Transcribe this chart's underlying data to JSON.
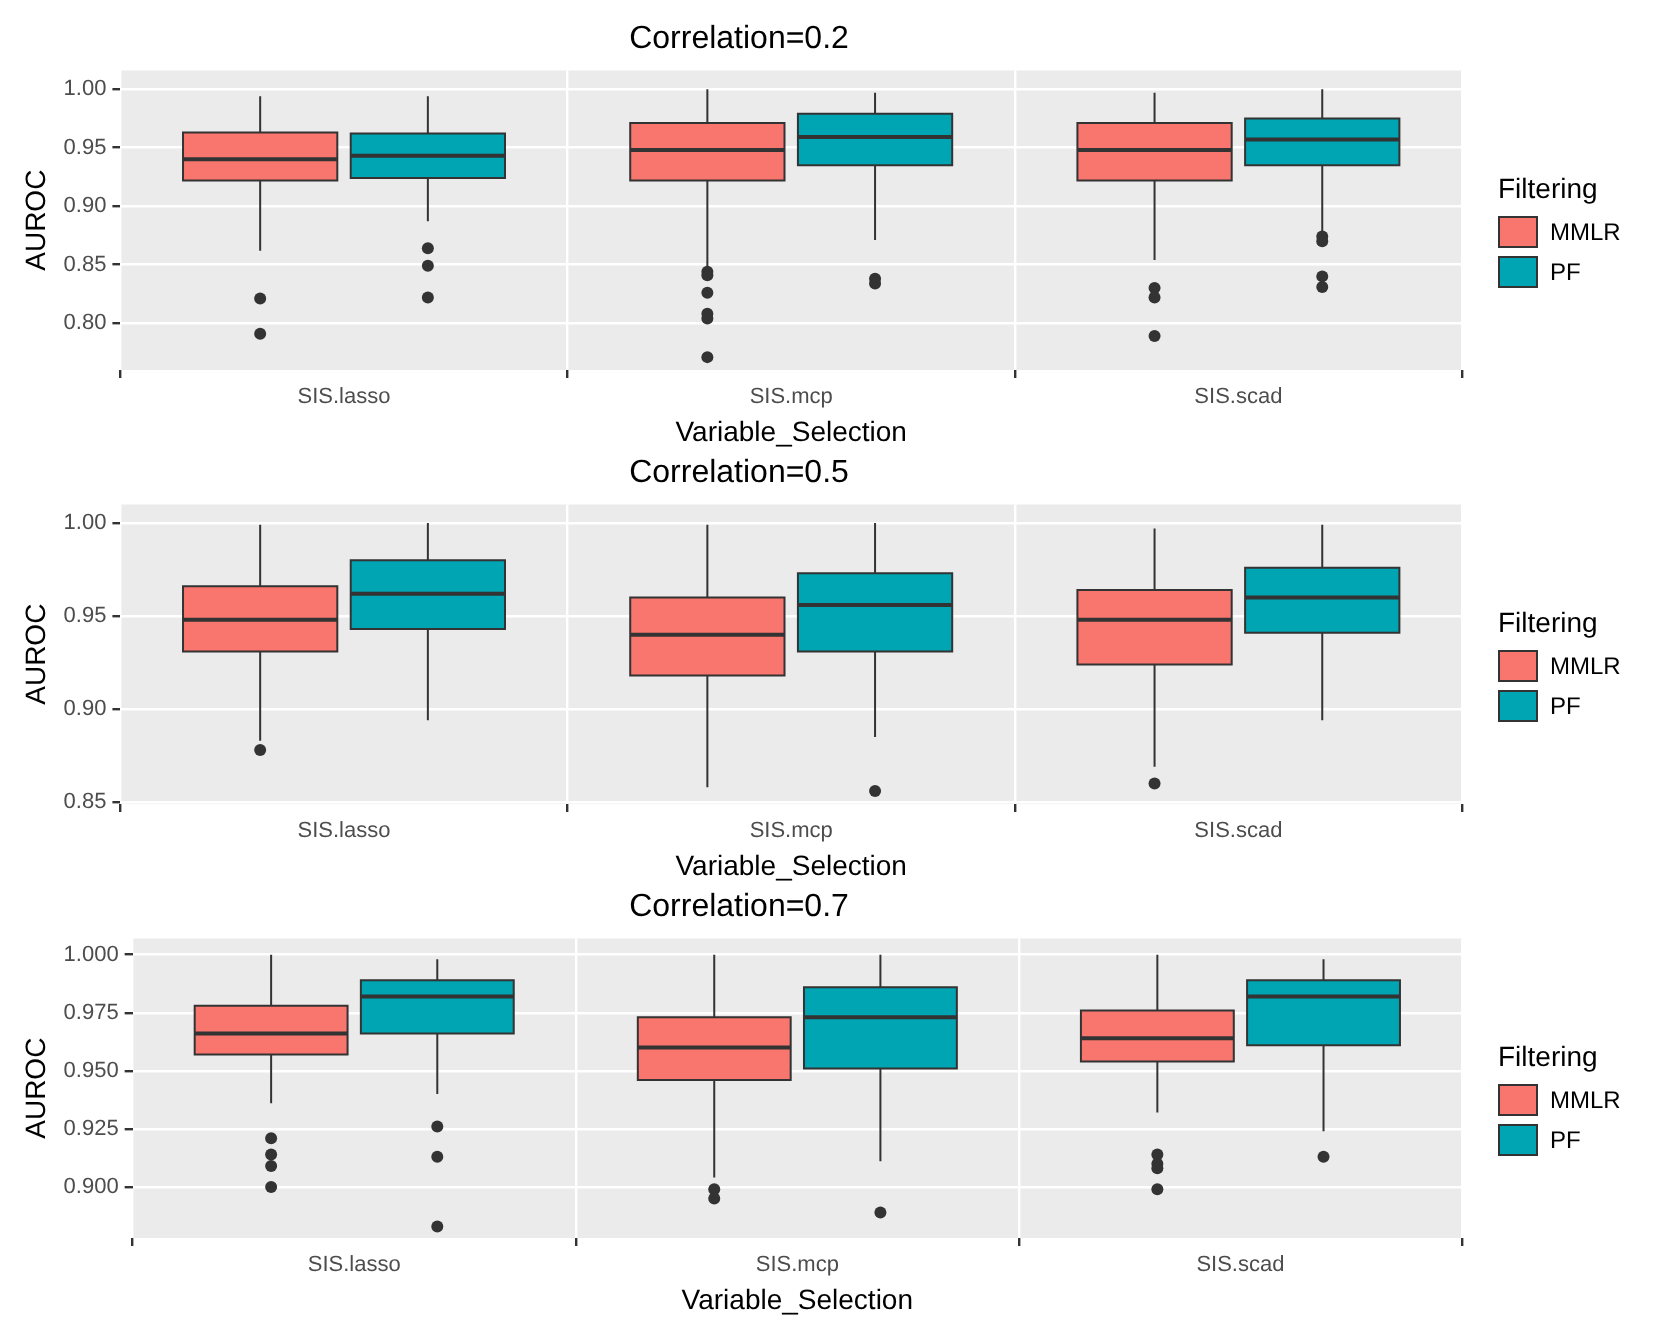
{
  "chart_data": [
    {
      "type": "box",
      "title": "Correlation=0.2",
      "xlabel": "Variable_Selection",
      "ylabel": "AUROC",
      "legend_title": "Filtering",
      "legend": "right",
      "grid": true,
      "categories": [
        "SIS.lasso",
        "SIS.mcp",
        "SIS.scad"
      ],
      "ylim": [
        0.76,
        1.016
      ],
      "yticks": [
        {
          "value": 0.8,
          "label": "0.80"
        },
        {
          "value": 0.85,
          "label": "0.85"
        },
        {
          "value": 0.9,
          "label": "0.90"
        },
        {
          "value": 0.95,
          "label": "0.95"
        },
        {
          "value": 1,
          "label": "1.00"
        }
      ],
      "series": [
        {
          "name": "MMLR",
          "color": "#f8766d",
          "boxes": [
            {
              "low": 0.862,
              "q1": 0.922,
              "median": 0.94,
              "q3": 0.963,
              "high": 0.994,
              "outliers": [
                0.821,
                0.791
              ]
            },
            {
              "low": 0.848,
              "q1": 0.922,
              "median": 0.948,
              "q3": 0.971,
              "high": 1.0,
              "outliers": [
                0.844,
                0.841,
                0.826,
                0.808,
                0.804,
                0.771
              ]
            },
            {
              "low": 0.854,
              "q1": 0.922,
              "median": 0.948,
              "q3": 0.971,
              "high": 0.997,
              "outliers": [
                0.83,
                0.822,
                0.789
              ]
            }
          ]
        },
        {
          "name": "PF",
          "color": "#00a5b3",
          "boxes": [
            {
              "low": 0.887,
              "q1": 0.924,
              "median": 0.943,
              "q3": 0.962,
              "high": 0.994,
              "outliers": [
                0.864,
                0.849,
                0.822
              ]
            },
            {
              "low": 0.871,
              "q1": 0.935,
              "median": 0.959,
              "q3": 0.979,
              "high": 0.997,
              "outliers": [
                0.838,
                0.834
              ]
            },
            {
              "low": 0.875,
              "q1": 0.935,
              "median": 0.957,
              "q3": 0.975,
              "high": 1.0,
              "outliers": [
                0.874,
                0.87,
                0.84,
                0.831
              ]
            }
          ]
        }
      ]
    },
    {
      "type": "box",
      "title": "Correlation=0.5",
      "xlabel": "Variable_Selection",
      "ylabel": "AUROC",
      "legend_title": "Filtering",
      "legend": "right",
      "grid": true,
      "categories": [
        "SIS.lasso",
        "SIS.mcp",
        "SIS.scad"
      ],
      "ylim": [
        0.849,
        1.01
      ],
      "yticks": [
        {
          "value": 0.85,
          "label": "0.85"
        },
        {
          "value": 0.9,
          "label": "0.90"
        },
        {
          "value": 0.95,
          "label": "0.95"
        },
        {
          "value": 1,
          "label": "1.00"
        }
      ],
      "series": [
        {
          "name": "MMLR",
          "color": "#f8766d",
          "boxes": [
            {
              "low": 0.883,
              "q1": 0.931,
              "median": 0.948,
              "q3": 0.966,
              "high": 0.999,
              "outliers": [
                0.878
              ]
            },
            {
              "low": 0.858,
              "q1": 0.918,
              "median": 0.94,
              "q3": 0.96,
              "high": 0.999
            },
            {
              "low": 0.869,
              "q1": 0.924,
              "median": 0.948,
              "q3": 0.964,
              "high": 0.997,
              "outliers": [
                0.86
              ]
            }
          ]
        },
        {
          "name": "PF",
          "color": "#00a5b3",
          "boxes": [
            {
              "low": 0.894,
              "q1": 0.943,
              "median": 0.962,
              "q3": 0.98,
              "high": 1.0
            },
            {
              "low": 0.885,
              "q1": 0.931,
              "median": 0.956,
              "q3": 0.973,
              "high": 1.0,
              "outliers": [
                0.856
              ]
            },
            {
              "low": 0.894,
              "q1": 0.941,
              "median": 0.96,
              "q3": 0.976,
              "high": 0.999
            }
          ]
        }
      ]
    },
    {
      "type": "box",
      "title": "Correlation=0.7",
      "xlabel": "Variable_Selection",
      "ylabel": "AUROC",
      "legend_title": "Filtering",
      "legend": "right",
      "grid": true,
      "categories": [
        "SIS.lasso",
        "SIS.mcp",
        "SIS.scad"
      ],
      "ylim": [
        0.878,
        1.007
      ],
      "yticks": [
        {
          "value": 0.9,
          "label": "0.900"
        },
        {
          "value": 0.925,
          "label": "0.925"
        },
        {
          "value": 0.95,
          "label": "0.950"
        },
        {
          "value": 0.975,
          "label": "0.975"
        },
        {
          "value": 1,
          "label": "1.000"
        }
      ],
      "series": [
        {
          "name": "MMLR",
          "color": "#f8766d",
          "boxes": [
            {
              "low": 0.936,
              "q1": 0.957,
              "median": 0.966,
              "q3": 0.978,
              "high": 1.0,
              "outliers": [
                0.921,
                0.914,
                0.909,
                0.9
              ]
            },
            {
              "low": 0.904,
              "q1": 0.946,
              "median": 0.96,
              "q3": 0.973,
              "high": 1.0,
              "outliers": [
                0.899,
                0.895
              ]
            },
            {
              "low": 0.932,
              "q1": 0.954,
              "median": 0.964,
              "q3": 0.976,
              "high": 1.0,
              "outliers": [
                0.914,
                0.91,
                0.908,
                0.899
              ]
            }
          ]
        },
        {
          "name": "PF",
          "color": "#00a5b3",
          "boxes": [
            {
              "low": 0.94,
              "q1": 0.966,
              "median": 0.982,
              "q3": 0.989,
              "high": 0.998,
              "outliers": [
                0.926,
                0.913,
                0.883
              ]
            },
            {
              "low": 0.911,
              "q1": 0.951,
              "median": 0.973,
              "q3": 0.986,
              "high": 1.0,
              "outliers": [
                0.889
              ]
            },
            {
              "low": 0.924,
              "q1": 0.961,
              "median": 0.982,
              "q3": 0.989,
              "high": 0.998,
              "outliers": [
                0.913
              ]
            }
          ]
        }
      ]
    }
  ]
}
